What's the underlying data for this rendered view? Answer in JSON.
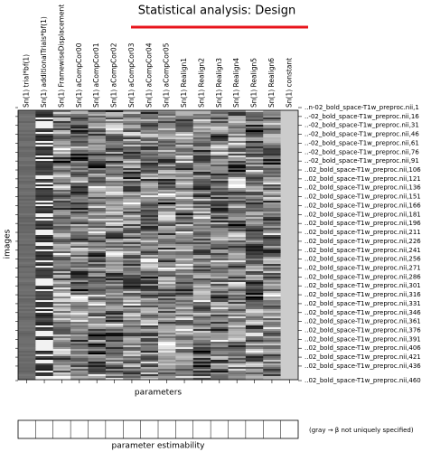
{
  "header": {
    "title": "Statistical analysis: Design"
  },
  "matrix": {
    "columns": [
      "Sn(1) trial*bf(1)",
      "Sn(1) additionalTrials*bf(1)",
      "Sn(1) FramewiseDisplacement",
      "Sn(1) aCompCor00",
      "Sn(1) aCompCor01",
      "Sn(1) aCompCor02",
      "Sn(1) aCompCor03",
      "Sn(1) aCompCor04",
      "Sn(1) aCompCor05",
      "Sn(1) Realign1",
      "Sn(1) Realign2",
      "Sn(1) Realign3",
      "Sn(1) Realign4",
      "Sn(1) Realign5",
      "Sn(1) Realign6",
      "Sn(1) constant"
    ],
    "rows": [
      "..n-02_bold_space-T1w_preproc.nii,1",
      "..-02_bold_space-T1w_preproc.nii,16",
      "..-02_bold_space-T1w_preproc.nii,31",
      "..-02_bold_space-T1w_preproc.nii,46",
      "..-02_bold_space-T1w_preproc.nii,61",
      "..-02_bold_space-T1w_preproc.nii,76",
      "..-02_bold_space-T1w_preproc.nii,91",
      "..02_bold_space-T1w_preproc.nii,106",
      "..02_bold_space-T1w_preproc.nii,121",
      "..02_bold_space-T1w_preproc.nii,136",
      "..02_bold_space-T1w_preproc.nii,151",
      "..02_bold_space-T1w_preproc.nii,166",
      "..02_bold_space-T1w_preproc.nii,181",
      "..02_bold_space-T1w_preproc.nii,196",
      "..02_bold_space-T1w_preproc.nii,211",
      "..02_bold_space-T1w_preproc.nii,226",
      "..02_bold_space-T1w_preproc.nii,241",
      "..02_bold_space-T1w_preproc.nii,256",
      "..02_bold_space-T1w_preproc.nii,271",
      "..02_bold_space-T1w_preproc.nii,286",
      "..02_bold_space-T1w_preproc.nii,301",
      "..02_bold_space-T1w_preproc.nii,316",
      "..02_bold_space-T1w_preproc.nii,331",
      "..02_bold_space-T1w_preproc.nii,346",
      "..02_bold_space-T1w_preproc.nii,361",
      "..02_bold_space-T1w_preproc.nii,376",
      "..02_bold_space-T1w_preproc.nii,391",
      "..02_bold_space-T1w_preproc.nii,406",
      "..02_bold_space-T1w_preproc.nii,421",
      "..02_bold_space-T1w_preproc.nii,436",
      "..02_bold_space-T1w_preproc.nii,460"
    ],
    "x_label": "parameters",
    "y_label": "images"
  },
  "estimability": {
    "label": "parameter estimability",
    "note": "(gray → β not uniquely specified)"
  }
}
